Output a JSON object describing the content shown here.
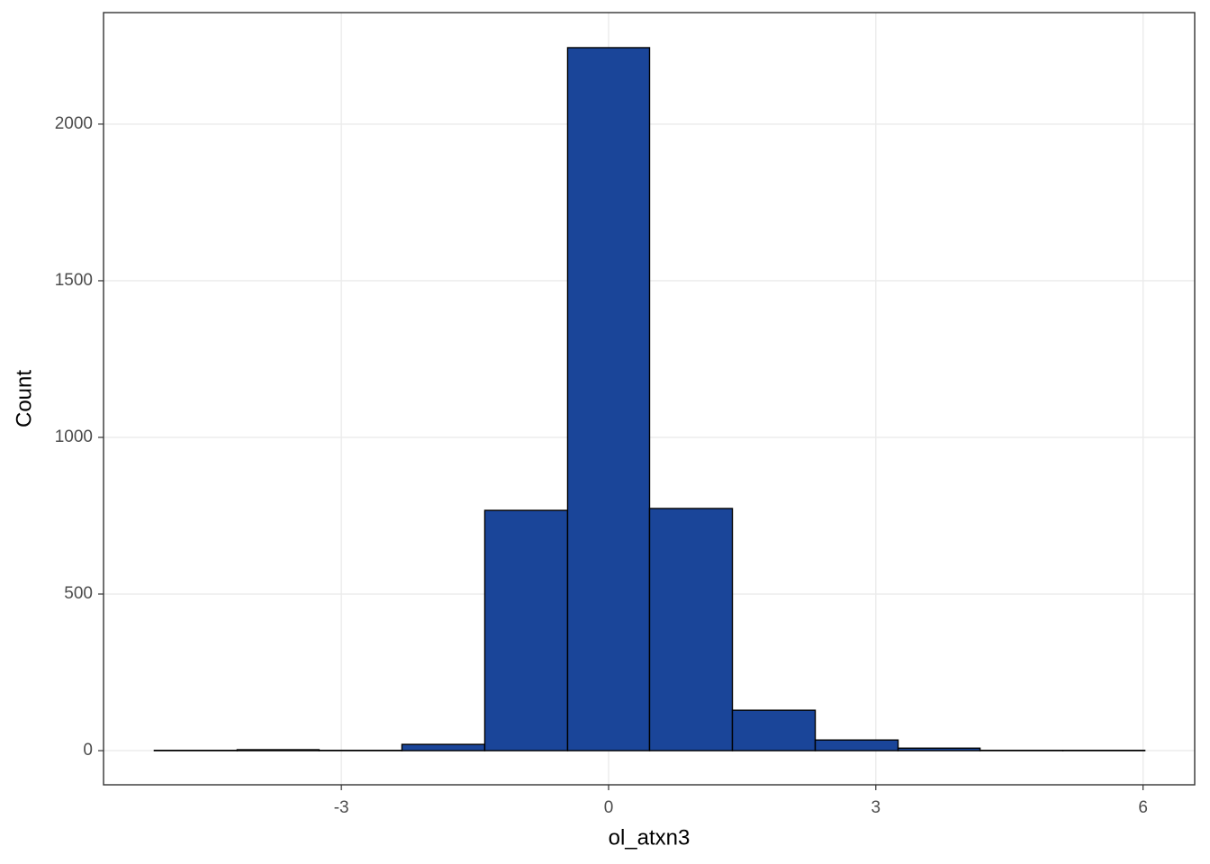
{
  "chart_data": {
    "type": "histogram",
    "x_label": "ol_atxn3",
    "y_label": "Count",
    "bins": [
      -5.1,
      -4.17,
      -3.25,
      -2.32,
      -1.39,
      -0.46,
      0.46,
      1.39,
      2.32,
      3.25,
      4.17,
      5.1,
      6.02
    ],
    "values": [
      1,
      3,
      1,
      20,
      767,
      2244,
      773,
      129,
      34,
      8,
      1,
      1
    ],
    "color": "#1a4599",
    "edge_color": "#000000",
    "xlim": [
      -5.67,
      6.58
    ],
    "ylim": [
      -109,
      2356
    ],
    "xticks": [
      -3,
      0,
      3,
      6
    ],
    "yticks": [
      0,
      500,
      1000,
      1500,
      2000
    ],
    "grid": true
  }
}
